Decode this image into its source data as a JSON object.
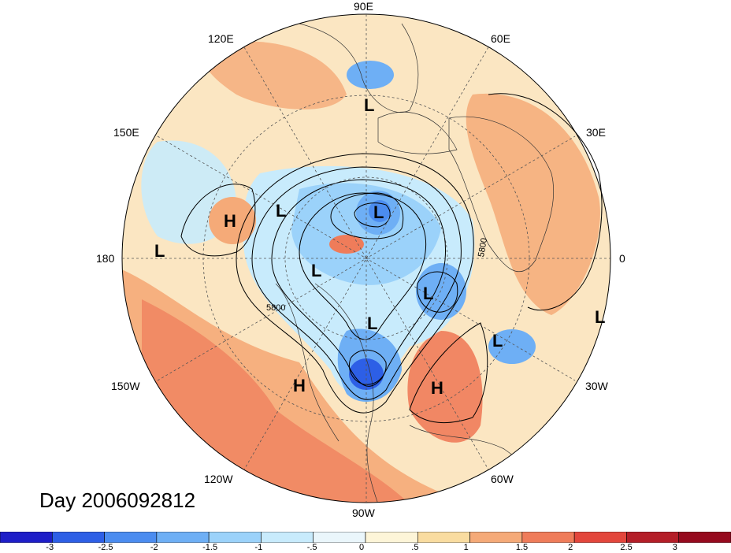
{
  "map": {
    "projection": "north-polar-stereographic",
    "longitude_labels": {
      "top": "90E",
      "bottom": "90W",
      "left": "180",
      "right": "0",
      "upper_left": "120E",
      "upper_right": "60E",
      "mid_upper_left": "150E",
      "mid_upper_right": "30E",
      "mid_lower_left": "150W",
      "mid_lower_right": "30W",
      "lower_left": "120W",
      "lower_right": "60W"
    },
    "contour_labels": [
      "5800",
      "5800"
    ],
    "pressure_systems": [
      {
        "type": "H",
        "label": "H"
      },
      {
        "type": "H",
        "label": "H"
      },
      {
        "type": "H",
        "label": "H"
      },
      {
        "type": "L",
        "label": "L"
      },
      {
        "type": "L",
        "label": "L"
      },
      {
        "type": "L",
        "label": "L"
      },
      {
        "type": "L",
        "label": "L"
      },
      {
        "type": "L",
        "label": "L"
      },
      {
        "type": "L",
        "label": "L"
      },
      {
        "type": "L",
        "label": "L"
      },
      {
        "type": "L",
        "label": "L"
      },
      {
        "type": "L",
        "label": "L"
      }
    ]
  },
  "title": "Day 2006092812",
  "colorbar": {
    "ticks": [
      "-3",
      "-2.5",
      "-2",
      "-1.5",
      "-1",
      "-.5",
      "0",
      ".5",
      "1",
      "1.5",
      "2",
      "2.5",
      "3"
    ],
    "colors": [
      "#1e1ec8",
      "#2d5fe6",
      "#4b8cf0",
      "#6eaff5",
      "#9bd2fa",
      "#c8ebfc",
      "#eaf6fb",
      "#fdf5d8",
      "#f9dca0",
      "#f5aa78",
      "#ef7c5a",
      "#e3463c",
      "#b41e28",
      "#960a1e"
    ]
  },
  "colors": {
    "land": "#f5c99b",
    "warm": "#ef7c5a",
    "cold": "#4b8cf0"
  }
}
